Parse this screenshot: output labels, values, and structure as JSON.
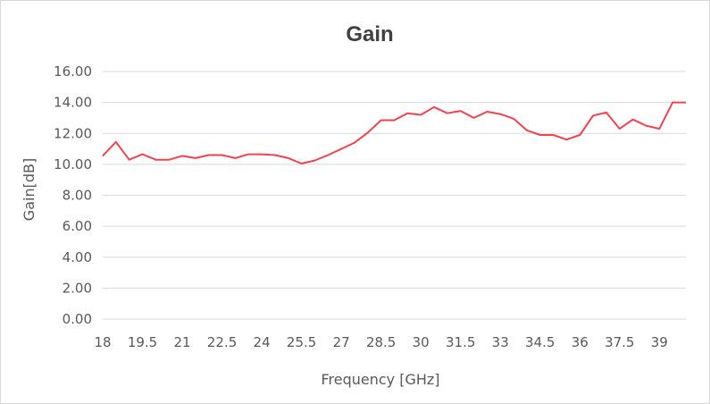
{
  "chart_data": {
    "type": "line",
    "title": "Gain",
    "xlabel": "Frequency [GHz]",
    "ylabel": "Gain[dB]",
    "ylim": [
      0,
      16
    ],
    "xlim": [
      18,
      40
    ],
    "grid": true,
    "line_color": "#f0434f",
    "x_ticks": [
      "18",
      "19.5",
      "21",
      "22.5",
      "24",
      "25.5",
      "27",
      "28.5",
      "30",
      "31.5",
      "33",
      "34.5",
      "36",
      "37.5",
      "39"
    ],
    "y_ticks": [
      "0.00",
      "2.00",
      "4.00",
      "6.00",
      "8.00",
      "10.00",
      "12.00",
      "14.00",
      "16.00"
    ],
    "series": [
      {
        "x": [
          18,
          18.5,
          19,
          19.5,
          20,
          20.5,
          21,
          21.5,
          22,
          22.5,
          23,
          23.5,
          24,
          24.5,
          25,
          25.5,
          26,
          26.5,
          27,
          27.5,
          28,
          28.5,
          29,
          29.5,
          30,
          30.5,
          31,
          31.5,
          32,
          32.5,
          33,
          33.5,
          34,
          34.5,
          35,
          35.5,
          36,
          36.5,
          37,
          37.5,
          38,
          38.5,
          39,
          39.5,
          40
        ],
        "values": [
          10.55,
          11.45,
          10.3,
          10.65,
          10.3,
          10.3,
          10.55,
          10.4,
          10.6,
          10.6,
          10.4,
          10.65,
          10.65,
          10.6,
          10.4,
          10.05,
          10.25,
          10.6,
          11.0,
          11.4,
          12.05,
          12.85,
          12.85,
          13.3,
          13.2,
          13.7,
          13.3,
          13.45,
          13.0,
          13.4,
          13.25,
          12.95,
          12.2,
          11.9,
          11.9,
          11.6,
          11.9,
          13.15,
          13.35,
          12.3,
          12.9,
          12.5,
          12.3,
          14.0,
          14.0
        ]
      }
    ]
  }
}
